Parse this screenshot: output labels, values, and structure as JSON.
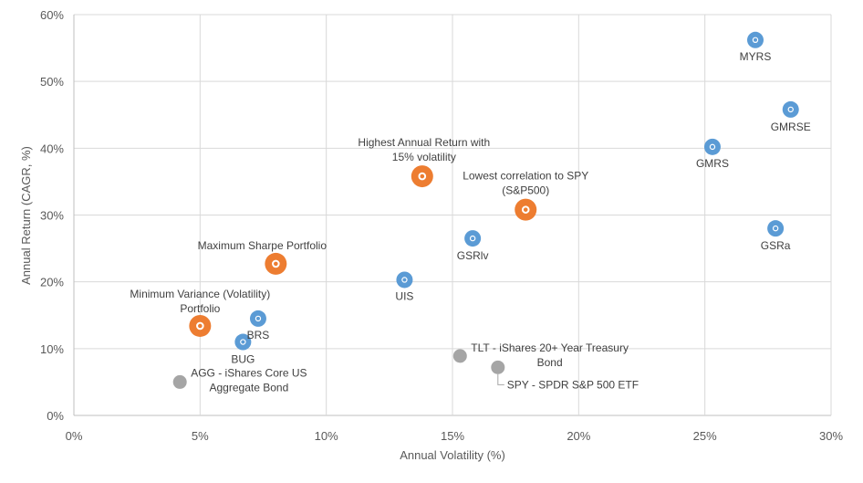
{
  "chart_data": {
    "type": "scatter",
    "xlabel": "Annual Volatility (%)",
    "ylabel": "Annual Return (CAGR, %)",
    "xlim": [
      0,
      30
    ],
    "ylim": [
      0,
      60
    ],
    "x_ticks": [
      "0%",
      "5%",
      "10%",
      "15%",
      "20%",
      "25%",
      "30%"
    ],
    "y_ticks": [
      "0%",
      "10%",
      "20%",
      "30%",
      "40%",
      "50%",
      "60%"
    ],
    "grid": true,
    "colors": {
      "strategy": "#5b9bd5",
      "portfolio": "#ed7d31",
      "benchmark": "#a5a5a5"
    },
    "series": [
      {
        "group": "strategy",
        "points": [
          {
            "label": "MYRS",
            "x": 27.0,
            "y": 56.2
          },
          {
            "label": "GMRSE",
            "x": 28.4,
            "y": 45.8
          },
          {
            "label": "GMRS",
            "x": 25.3,
            "y": 40.2
          },
          {
            "label": "GSRa",
            "x": 27.8,
            "y": 28.0
          },
          {
            "label": "GSRlv",
            "x": 15.8,
            "y": 26.5
          },
          {
            "label": "UIS",
            "x": 13.1,
            "y": 20.3
          },
          {
            "label": "BRS",
            "x": 7.3,
            "y": 14.5
          },
          {
            "label": "BUG",
            "x": 6.7,
            "y": 11.0
          }
        ]
      },
      {
        "group": "portfolio",
        "points": [
          {
            "label": [
              "Highest Annual Return with",
              "15% volatility"
            ],
            "x": 13.8,
            "y": 35.8
          },
          {
            "label": [
              "Lowest correlation to SPY",
              "(S&P500)"
            ],
            "x": 17.9,
            "y": 30.8
          },
          {
            "label": [
              "Maximum Sharpe Portfolio"
            ],
            "x": 8.0,
            "y": 22.7
          },
          {
            "label": [
              "Minimum  Variance (Volatility)",
              "Portfolio"
            ],
            "x": 5.0,
            "y": 13.4
          }
        ]
      },
      {
        "group": "benchmark",
        "points": [
          {
            "label": [
              "AGG - iShares Core US",
              "Aggregate Bond"
            ],
            "x": 4.2,
            "y": 5.0
          },
          {
            "label": [
              "TLT - iShares 20+ Year Treasury",
              "Bond"
            ],
            "x": 15.3,
            "y": 8.9
          },
          {
            "label": [
              "SPY - SPDR S&P 500 ETF"
            ],
            "x": 16.8,
            "y": 7.2
          }
        ]
      }
    ]
  }
}
